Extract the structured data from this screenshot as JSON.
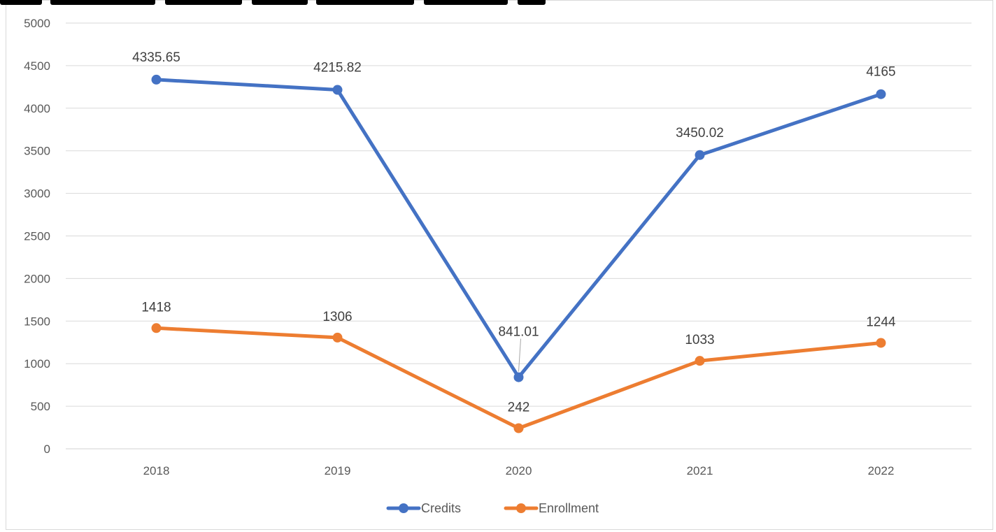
{
  "chart_data": {
    "type": "line",
    "categories": [
      "2018",
      "2019",
      "2020",
      "2021",
      "2022"
    ],
    "ylim": [
      0,
      5000
    ],
    "yticks": [
      0,
      500,
      1000,
      1500,
      2000,
      2500,
      3000,
      3500,
      4000,
      4500,
      5000
    ],
    "grid": true,
    "legend_position": "bottom",
    "series": [
      {
        "name": "Credits",
        "color": "#4472c4",
        "values": [
          4335.65,
          4215.82,
          841.01,
          3450.02,
          4165
        ],
        "labels": [
          "4335.65",
          "4215.82",
          "841.01",
          "3450.02",
          "4165"
        ]
      },
      {
        "name": "Enrollment",
        "color": "#ed7d31",
        "values": [
          1418,
          1306,
          242,
          1033,
          1244
        ],
        "labels": [
          "1418",
          "1306",
          "242",
          "1033",
          "1244"
        ]
      }
    ]
  }
}
